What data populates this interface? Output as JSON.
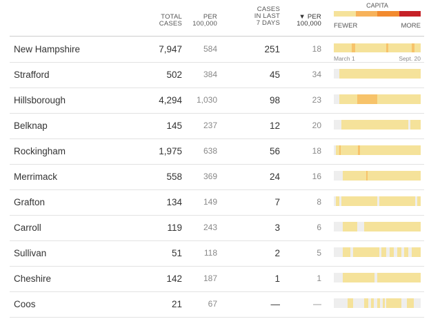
{
  "header": {
    "legend_title": "CAPITA",
    "legend_fewer": "FEWER",
    "legend_more": "MORE",
    "col_total": [
      "TOTAL",
      "CASES"
    ],
    "col_per": [
      "PER",
      "100,000"
    ],
    "col_last7": [
      "CASES",
      "IN LAST",
      "7 DAYS"
    ],
    "col_per7": [
      "▼ PER",
      "100,000"
    ]
  },
  "colors": {
    "level1": "#f5e29a",
    "level2": "#f7c36a",
    "level3": "#f28a2e",
    "level4": "#c62127",
    "empty": "#eeeeee"
  },
  "axis": {
    "start": "March 1",
    "end": "Sept. 20"
  },
  "rows": [
    {
      "name": "New Hampshire",
      "total": "7,947",
      "per100k": "584",
      "last7": "251",
      "per7": "18",
      "spark": "state"
    },
    {
      "name": "Strafford",
      "total": "502",
      "per100k": "384",
      "last7": "45",
      "per7": "34"
    },
    {
      "name": "Hillsborough",
      "total": "4,294",
      "per100k": "1,030",
      "last7": "98",
      "per7": "23"
    },
    {
      "name": "Belknap",
      "total": "145",
      "per100k": "237",
      "last7": "12",
      "per7": "20"
    },
    {
      "name": "Rockingham",
      "total": "1,975",
      "per100k": "638",
      "last7": "56",
      "per7": "18"
    },
    {
      "name": "Merrimack",
      "total": "558",
      "per100k": "369",
      "last7": "24",
      "per7": "16"
    },
    {
      "name": "Grafton",
      "total": "134",
      "per100k": "149",
      "last7": "7",
      "per7": "8"
    },
    {
      "name": "Carroll",
      "total": "119",
      "per100k": "243",
      "last7": "3",
      "per7": "6"
    },
    {
      "name": "Sullivan",
      "total": "51",
      "per100k": "118",
      "last7": "2",
      "per7": "5"
    },
    {
      "name": "Cheshire",
      "total": "142",
      "per100k": "187",
      "last7": "1",
      "per7": "1"
    },
    {
      "name": "Coos",
      "total": "21",
      "per100k": "67",
      "last7": "—",
      "per7": "—"
    }
  ]
}
